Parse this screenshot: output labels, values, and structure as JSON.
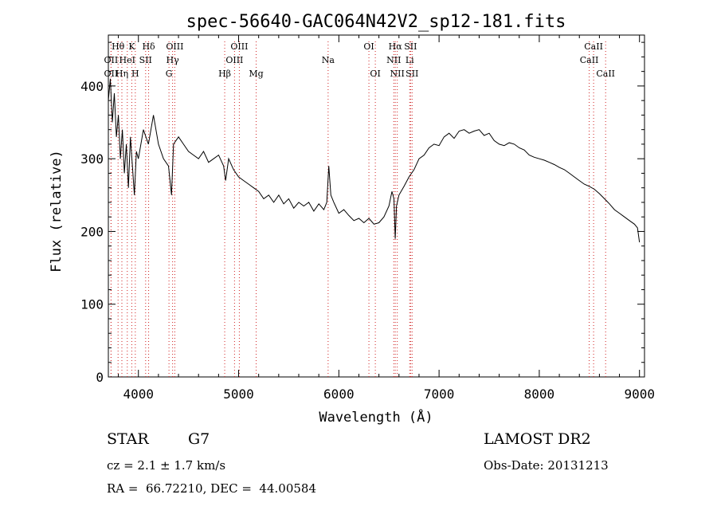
{
  "chart_data": {
    "type": "line",
    "title": "spec-56640-GAC064N42V2_sp12-181.fits",
    "xlabel": "Wavelength (Å)",
    "ylabel": "Flux (relative)",
    "xlim": [
      3700,
      9050
    ],
    "ylim": [
      0,
      470
    ],
    "xticks": [
      4000,
      5000,
      6000,
      7000,
      8000,
      9000
    ],
    "xtick_labels": [
      "4000",
      "5000",
      "6000",
      "7000",
      "8000",
      "9000"
    ],
    "yticks": [
      0,
      100,
      200,
      300,
      400
    ],
    "ytick_labels": [
      "0",
      "100",
      "200",
      "300",
      "400"
    ],
    "grid": false,
    "series": [
      {
        "name": "flux",
        "x": [
          3700,
          3720,
          3740,
          3760,
          3780,
          3800,
          3820,
          3840,
          3860,
          3880,
          3900,
          3920,
          3940,
          3960,
          3980,
          4000,
          4050,
          4100,
          4150,
          4200,
          4250,
          4300,
          4330,
          4350,
          4400,
          4450,
          4500,
          4550,
          4600,
          4650,
          4700,
          4750,
          4800,
          4850,
          4870,
          4900,
          4950,
          5000,
          5050,
          5100,
          5150,
          5200,
          5250,
          5300,
          5350,
          5400,
          5450,
          5500,
          5550,
          5600,
          5650,
          5700,
          5750,
          5800,
          5850,
          5880,
          5900,
          5920,
          5950,
          6000,
          6050,
          6100,
          6150,
          6200,
          6250,
          6300,
          6350,
          6400,
          6450,
          6500,
          6530,
          6550,
          6563,
          6575,
          6600,
          6650,
          6700,
          6750,
          6800,
          6850,
          6900,
          6950,
          7000,
          7050,
          7100,
          7150,
          7200,
          7250,
          7300,
          7350,
          7400,
          7450,
          7500,
          7550,
          7600,
          7650,
          7700,
          7750,
          7800,
          7850,
          7900,
          7950,
          8000,
          8050,
          8100,
          8150,
          8200,
          8250,
          8300,
          8350,
          8400,
          8450,
          8500,
          8550,
          8600,
          8650,
          8700,
          8750,
          8800,
          8850,
          8900,
          8950,
          8980,
          9000
        ],
        "y": [
          380,
          410,
          350,
          390,
          330,
          360,
          300,
          340,
          280,
          320,
          260,
          330,
          290,
          250,
          310,
          300,
          340,
          320,
          360,
          320,
          300,
          290,
          250,
          320,
          330,
          320,
          310,
          305,
          300,
          310,
          295,
          300,
          305,
          290,
          270,
          300,
          285,
          275,
          270,
          265,
          260,
          255,
          245,
          250,
          240,
          250,
          238,
          245,
          232,
          240,
          235,
          240,
          228,
          238,
          230,
          240,
          290,
          250,
          240,
          225,
          230,
          222,
          215,
          218,
          212,
          218,
          210,
          212,
          220,
          235,
          255,
          245,
          190,
          235,
          250,
          262,
          275,
          285,
          300,
          305,
          315,
          320,
          318,
          330,
          335,
          328,
          338,
          340,
          335,
          338,
          340,
          332,
          335,
          325,
          320,
          318,
          322,
          320,
          315,
          312,
          305,
          302,
          300,
          298,
          295,
          292,
          288,
          285,
          280,
          275,
          270,
          265,
          262,
          258,
          252,
          245,
          238,
          230,
          225,
          220,
          215,
          210,
          205,
          185
        ]
      }
    ],
    "lines": [
      {
        "label": "Hθ",
        "row": 1,
        "x": 3797
      },
      {
        "label": "K",
        "row": 1,
        "x": 3934
      },
      {
        "label": "Hδ",
        "row": 1,
        "x": 4102
      },
      {
        "label": "OII",
        "row": 2,
        "x": 3727
      },
      {
        "label": "HeI",
        "row": 2,
        "x": 3889
      },
      {
        "label": "SII",
        "row": 2,
        "x": 4072
      },
      {
        "label": "OII",
        "row": 3,
        "x": 3727
      },
      {
        "label": "Hη",
        "row": 3,
        "x": 3835
      },
      {
        "label": "H",
        "row": 3,
        "x": 3969
      },
      {
        "label": "OIII",
        "row": 1,
        "x": 4363
      },
      {
        "label": "Hγ",
        "row": 2,
        "x": 4341
      },
      {
        "label": "G",
        "row": 3,
        "x": 4305
      },
      {
        "label": "OIII",
        "row": 1,
        "x": 5007
      },
      {
        "label": "OIII",
        "row": 2,
        "x": 4959
      },
      {
        "label": "Hβ",
        "row": 3,
        "x": 4861
      },
      {
        "label": "Mg",
        "row": 3,
        "x": 5175
      },
      {
        "label": "Na",
        "row": 2,
        "x": 5893
      },
      {
        "label": "OI",
        "row": 1,
        "x": 6300
      },
      {
        "label": "OI",
        "row": 3,
        "x": 6364
      },
      {
        "label": "Hα",
        "row": 1,
        "x": 6563
      },
      {
        "label": "SII",
        "row": 1,
        "x": 6716
      },
      {
        "label": "NII",
        "row": 2,
        "x": 6548
      },
      {
        "label": "Li",
        "row": 2,
        "x": 6707
      },
      {
        "label": "NII",
        "row": 3,
        "x": 6583
      },
      {
        "label": "SII",
        "row": 3,
        "x": 6731
      },
      {
        "label": "CaII",
        "row": 1,
        "x": 8542
      },
      {
        "label": "CaII",
        "row": 2,
        "x": 8498
      },
      {
        "label": "CaII",
        "row": 3,
        "x": 8662
      }
    ]
  },
  "info": {
    "class_label": "STAR",
    "subclass": "G7",
    "survey": "LAMOST DR2",
    "cz": "cz = 2.1 ± 1.7 km/s",
    "obs_date": "Obs-Date: 20131213",
    "coords": "RA =  66.72210, DEC =  44.00584"
  }
}
